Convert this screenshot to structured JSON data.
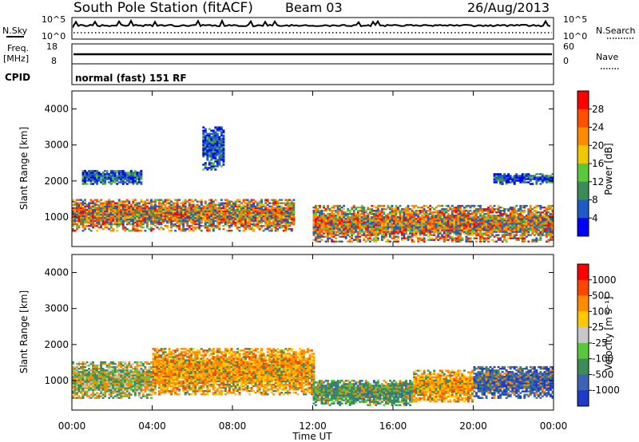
{
  "header": {
    "title": "South Pole Station (fitACF)",
    "beam": "Beam 03",
    "date": "26/Aug/2013"
  },
  "top_panels": {
    "nsky_label": "N.Sky",
    "nsky_ticks": [
      "10^5",
      "10^0"
    ],
    "nsearch_label": "N.Search",
    "nsearch_ticks": [
      "10^5",
      "10^0"
    ],
    "freq_label": "Freq.",
    "freq_unit": "[MHz]",
    "freq_ticks": [
      "18",
      "8"
    ],
    "nave_label": "Nave",
    "nave_ticks": [
      "60",
      "0"
    ],
    "cpid_label": "CPID",
    "cpid_text": "normal (fast) 151 RF"
  },
  "chart_data": [
    {
      "type": "heatmap",
      "name": "power",
      "ylabel": "Slant Range [km]",
      "xlabel": "Time UT",
      "ylim": [
        180,
        4500
      ],
      "yticks": [
        1000,
        2000,
        3000,
        4000
      ],
      "xlim": [
        0,
        24
      ],
      "xticks": [
        "00:00",
        "04:00",
        "08:00",
        "12:00",
        "16:00",
        "20:00",
        "00:00"
      ],
      "colorbar": {
        "label": "Power [dB]",
        "ticks": [
          "4",
          "8",
          "12",
          "16",
          "20",
          "24",
          "28"
        ],
        "colors": [
          "#0000ff",
          "#1e5ac8",
          "#3c8c5a",
          "#5ac83c",
          "#f0c800",
          "#ff8c00",
          "#ff5000",
          "#ff0000"
        ]
      },
      "regions": [
        {
          "t0": 0.0,
          "t1": 11.0,
          "r0": 600,
          "r1": 1500,
          "level": "high"
        },
        {
          "t0": 0.5,
          "t1": 3.5,
          "r0": 1900,
          "r1": 2300,
          "level": "low"
        },
        {
          "t0": 6.5,
          "t1": 7.5,
          "r0": 2300,
          "r1": 3500,
          "level": "low"
        },
        {
          "t0": 12.0,
          "t1": 24.0,
          "r0": 300,
          "r1": 1300,
          "level": "high"
        },
        {
          "t0": 21.0,
          "t1": 24.0,
          "r0": 1900,
          "r1": 2200,
          "level": "low"
        }
      ]
    },
    {
      "type": "heatmap",
      "name": "velocity",
      "ylabel": "Slant Range [km]",
      "xlabel": "Time UT",
      "ylim": [
        180,
        4500
      ],
      "yticks": [
        1000,
        2000,
        3000,
        4000
      ],
      "xlim": [
        0,
        24
      ],
      "xticks": [
        "00:00",
        "04:00",
        "08:00",
        "12:00",
        "16:00",
        "20:00",
        "00:00"
      ],
      "colorbar": {
        "label": "Velocity [m s⁻¹]",
        "ticks": [
          "1000",
          "500",
          "100",
          "25",
          "-25",
          "-100",
          "-500",
          "-1000"
        ],
        "colors": [
          "#1e3cc8",
          "#3c64b4",
          "#3c8c5a",
          "#5ac83c",
          "#c8c8c8",
          "#ffc800",
          "#ff8c00",
          "#ff4600",
          "#ff0000"
        ]
      },
      "regions": [
        {
          "t0": 0.0,
          "t1": 4.0,
          "r0": 500,
          "r1": 1500,
          "level": "mixed-green-orange"
        },
        {
          "t0": 4.0,
          "t1": 12.0,
          "r0": 600,
          "r1": 1900,
          "level": "orange"
        },
        {
          "t0": 12.0,
          "t1": 17.0,
          "r0": 300,
          "r1": 1000,
          "level": "green"
        },
        {
          "t0": 17.0,
          "t1": 20.0,
          "r0": 400,
          "r1": 1300,
          "level": "orange"
        },
        {
          "t0": 20.0,
          "t1": 24.0,
          "r0": 500,
          "r1": 1400,
          "level": "blue"
        }
      ]
    }
  ]
}
